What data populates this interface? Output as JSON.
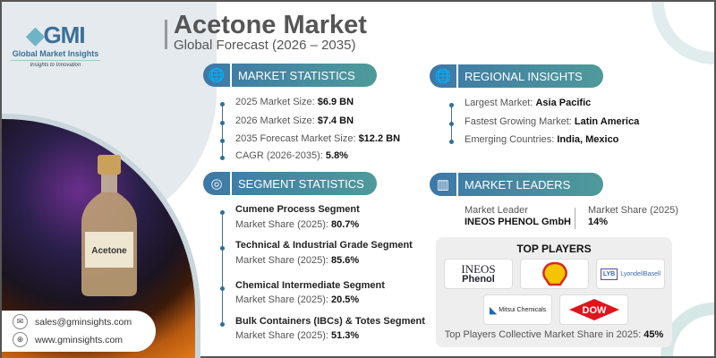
{
  "header": {
    "title": "Acetone Market",
    "subtitle": "Global Forecast (2026 – 2035)"
  },
  "logo": {
    "mark": "GMI",
    "name": "Global Market Insights",
    "tagline": "Insights to Innovation"
  },
  "market_statistics": {
    "heading": "MARKET STATISTICS",
    "icon": "globe-chart-icon",
    "items": [
      {
        "label": "2025 Market Size: ",
        "value": "$6.9 BN"
      },
      {
        "label": "2026 Market Size: ",
        "value": "$7.4 BN"
      },
      {
        "label": "2035 Forecast Market Size: ",
        "value": "$12.2 BN"
      },
      {
        "label": "CAGR (2026-2035): ",
        "value": "5.8%"
      }
    ]
  },
  "regional_insights": {
    "heading": "REGIONAL INSIGHTS",
    "icon": "globe-icon",
    "items": [
      {
        "label": "Largest Market: ",
        "value": "Asia Pacific"
      },
      {
        "label": "Fastest Growing Market: ",
        "value": "Latin America"
      },
      {
        "label": "Emerging Countries: ",
        "value": "India, Mexico"
      }
    ]
  },
  "segment_statistics": {
    "heading": "SEGMENT STATISTICS",
    "icon": "target-chart-icon",
    "items": [
      {
        "title": "Cumene Process Segment",
        "label": "Market Share (2025): ",
        "value": "80.7%"
      },
      {
        "title": "Technical & Industrial Grade Segment",
        "label": "Market Share (2025): ",
        "value": "85.6%"
      },
      {
        "title": "Chemical Intermediate Segment",
        "label": "Market Share (2025): ",
        "value": "20.5%"
      },
      {
        "title": "Bulk Containers (IBCs) & Totes Segment",
        "label": "Market Share (2025): ",
        "value": "51.3%"
      }
    ]
  },
  "market_leaders": {
    "heading": "MARKET LEADERS",
    "icon": "leader-chart-icon",
    "leader_label": "Market Leader",
    "leader": "INEOS PHENOL GmbH",
    "share_label": "Market Share (2025)",
    "share": "14%"
  },
  "top_players": {
    "heading": "TOP PLAYERS",
    "logos": [
      "INEOS Phenol",
      "Shell",
      "LyondellBasell",
      "Mitsui Chemicals",
      "DOW"
    ],
    "collective_label": "Top Players Collective Market Share in 2025: ",
    "collective_value": "45%"
  },
  "contact": {
    "email": "sales@gminsights.com",
    "website": "www.gminsights.com"
  },
  "image": {
    "bottle_label": "Acetone"
  },
  "colors": {
    "pill_start": "#3d78a8",
    "pill_end": "#4f9a9a",
    "title": "#555555"
  }
}
